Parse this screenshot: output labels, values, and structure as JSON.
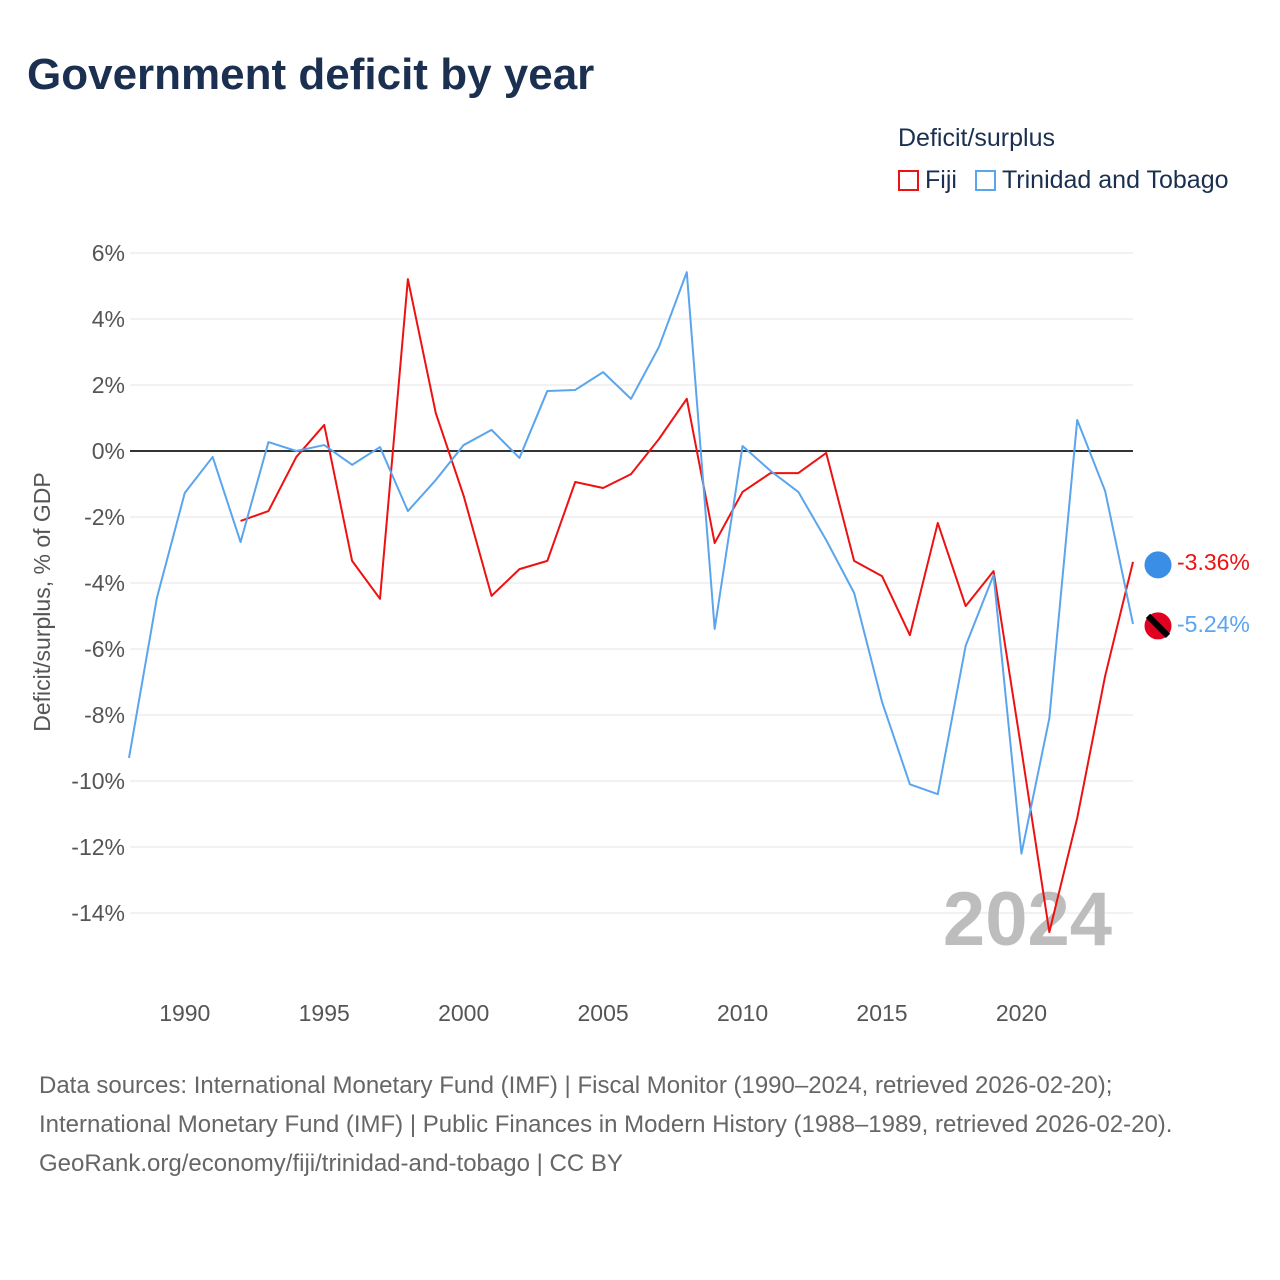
{
  "title": "Government deficit by year",
  "legend": {
    "title": "Deficit/surplus",
    "items": [
      "Fiji",
      "Trinidad and Tobago"
    ]
  },
  "footer": {
    "sources": "Data sources: International Monetary Fund (IMF) | Fiscal Monitor (1990–2024, retrieved 2026-02-20); International Monetary Fund (IMF) | Public Finances in Modern History (1988–1989, retrieved 2026-02-20).",
    "credit": "GeoRank.org/economy/fiji/trinidad-and-tobago | CC BY"
  },
  "chart_data": {
    "type": "line",
    "title": "Government deficit by year",
    "xlabel": "",
    "ylabel": "Deficit/surplus, % of GDP",
    "xlim": [
      1988,
      2024
    ],
    "ylim": [
      -16,
      6.5
    ],
    "yticks": [
      6,
      4,
      2,
      0,
      -2,
      -4,
      -6,
      -8,
      -10,
      -12,
      -14
    ],
    "ytick_labels": [
      "6%",
      "4%",
      "2%",
      "0%",
      "-2%",
      "-4%",
      "-6%",
      "-8%",
      "-10%",
      "-12%",
      "-14%"
    ],
    "xticks": [
      1990,
      1995,
      2000,
      2005,
      2010,
      2015,
      2020
    ],
    "xtick_labels": [
      "1990",
      "1995",
      "2000",
      "2005",
      "2010",
      "2015",
      "2020"
    ],
    "watermark_year": "2024",
    "legend_position": "top-right",
    "series": [
      {
        "name": "Fiji",
        "color": "#ee1111",
        "end_label": "-3.36%",
        "start": 1992,
        "values": [
          -2.12,
          -1.82,
          -0.18,
          0.79,
          -3.33,
          -4.48,
          5.21,
          1.15,
          -1.36,
          -4.39,
          -3.58,
          -3.33,
          -0.94,
          -1.12,
          -0.7,
          0.36,
          1.58,
          -2.79,
          -1.24,
          -0.67,
          -0.67,
          -0.06,
          -3.33,
          -3.79,
          -5.58,
          -2.18,
          -4.7,
          -3.64,
          -9.06,
          -14.58,
          -11.12,
          -6.82,
          -3.36
        ]
      },
      {
        "name": "Trinidad and Tobago",
        "color": "#5aa5ee",
        "end_label": "-5.24%",
        "start": 1988,
        "values": [
          -9.3,
          -4.45,
          -1.27,
          -0.18,
          -2.76,
          0.27,
          0.0,
          0.18,
          -0.42,
          0.12,
          -1.82,
          -0.88,
          0.18,
          0.64,
          -0.21,
          1.82,
          1.85,
          2.39,
          1.58,
          3.15,
          5.42,
          -5.39,
          0.15,
          -0.6,
          -1.24,
          -2.7,
          -4.3,
          -7.6,
          -10.1,
          -10.4,
          -5.9,
          -3.76,
          -12.2,
          -8.1,
          0.94,
          -1.21,
          -5.24
        ]
      }
    ]
  }
}
